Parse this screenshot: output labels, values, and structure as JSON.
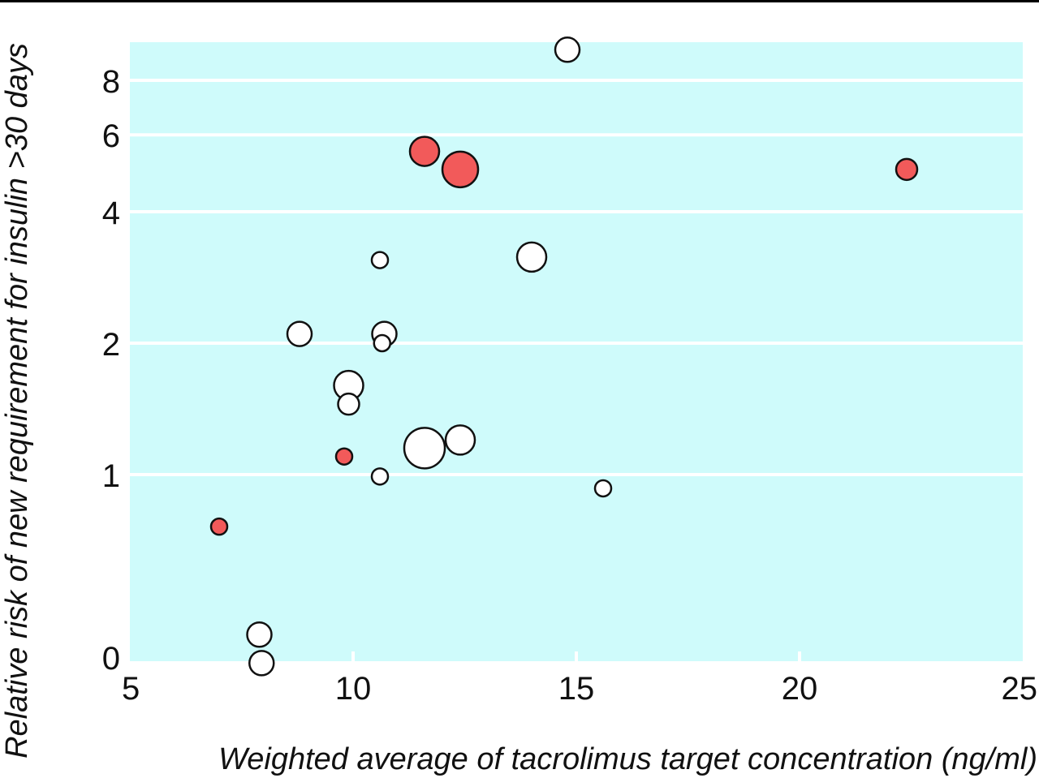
{
  "chart_data": {
    "type": "scatter",
    "title": "",
    "xlabel": "Weighted average of tacrolimus target concentration (ng/ml)",
    "ylabel": "Relative risk of new requirement for insulin >30 days",
    "xlim": [
      5,
      25
    ],
    "y_scale": "log",
    "x_ticks": [
      "5",
      "10",
      "15",
      "20",
      "25"
    ],
    "y_ticks": [
      "0",
      "1",
      "2",
      "4",
      "6",
      "8"
    ],
    "grid": "horizontal",
    "plot_background": "#cffbfb",
    "grid_color": "#ffffff",
    "colors": {
      "open": "#ffffff",
      "filled": "#f25a5a",
      "outline": "#111111"
    },
    "points": [
      {
        "x": 14.8,
        "y": 9.4,
        "size": "medium",
        "filled": false
      },
      {
        "x": 11.6,
        "y": 5.5,
        "size": "large",
        "filled": true
      },
      {
        "x": 12.4,
        "y": 5.0,
        "size": "xlarge",
        "filled": true
      },
      {
        "x": 22.4,
        "y": 5.0,
        "size": "small",
        "filled": true
      },
      {
        "x": 10.6,
        "y": 3.1,
        "size": "xsmall",
        "filled": false
      },
      {
        "x": 14.0,
        "y": 3.15,
        "size": "large",
        "filled": false
      },
      {
        "x": 8.8,
        "y": 2.1,
        "size": "medium",
        "filled": false
      },
      {
        "x": 10.7,
        "y": 2.1,
        "size": "medium",
        "filled": false
      },
      {
        "x": 10.65,
        "y": 2.0,
        "size": "xsmall",
        "filled": false
      },
      {
        "x": 9.9,
        "y": 1.6,
        "size": "large",
        "filled": false
      },
      {
        "x": 9.9,
        "y": 1.45,
        "size": "small",
        "filled": false
      },
      {
        "x": 12.4,
        "y": 1.2,
        "size": "large",
        "filled": false
      },
      {
        "x": 11.6,
        "y": 1.15,
        "size": "xxlarge",
        "filled": false
      },
      {
        "x": 9.8,
        "y": 1.1,
        "size": "xsmall",
        "filled": true
      },
      {
        "x": 10.6,
        "y": 0.99,
        "size": "xsmall",
        "filled": false
      },
      {
        "x": 15.6,
        "y": 0.93,
        "size": "xsmall",
        "filled": false
      },
      {
        "x": 7.0,
        "y": 0.76,
        "size": "xsmall",
        "filled": true
      },
      {
        "x": 7.9,
        "y": 0.43,
        "size": "medium",
        "filled": false
      },
      {
        "x": 7.95,
        "y": 0.37,
        "size": "medium",
        "filled": false
      }
    ]
  }
}
